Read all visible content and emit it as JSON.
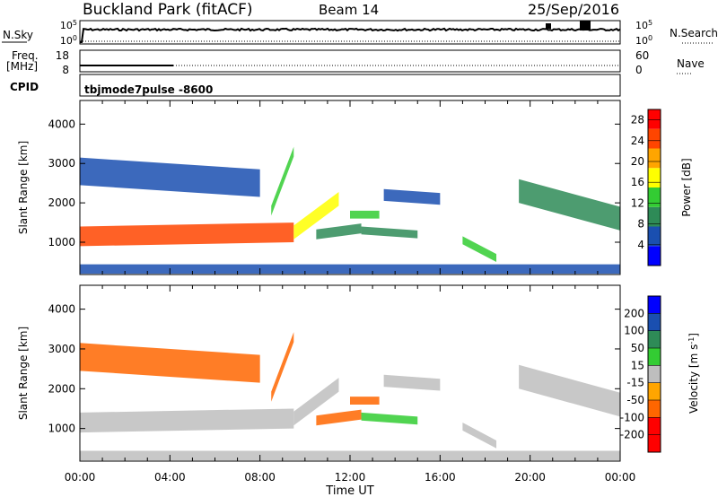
{
  "header": {
    "station": "Buckland Park (fitACF)",
    "beam": "Beam 14",
    "date": "25/Sep/2016"
  },
  "noise_panel": {
    "left_label": "N.Sky",
    "left_ticks": [
      "10^5",
      "10^0"
    ],
    "right_label": "N.Search",
    "right_ticks": [
      "10^5",
      "10^0"
    ]
  },
  "freq_panel": {
    "left_label": "Freq.",
    "left_unit": "[MHz]",
    "left_ticks": [
      "18",
      "8"
    ],
    "right_label": "Nave",
    "right_ticks": [
      "60",
      "0"
    ]
  },
  "cpid_panel": {
    "label": "CPID",
    "mode": "tbjmode7pulse  -8600"
  },
  "x_axis": {
    "label": "Time UT",
    "ticks": [
      "00:00",
      "04:00",
      "08:00",
      "12:00",
      "16:00",
      "20:00",
      "00:00"
    ]
  },
  "colors": {
    "power_scale": [
      "#0000ff",
      "#1a4fb0",
      "#2e8b57",
      "#33cc33",
      "#ffff00",
      "#ffa500",
      "#ff4500",
      "#ff0000"
    ],
    "velocity_scale": [
      "#0000ff",
      "#1a4fb0",
      "#2e8b57",
      "#33cc33",
      "#c0c0c0",
      "#ffa500",
      "#ff6600",
      "#ff0000"
    ],
    "ground_scatter": "#bebebe"
  },
  "chart_data": [
    {
      "type": "heatmap",
      "xlabel": "Time UT",
      "ylabel": "Slant Range [km]",
      "xlim": [
        0,
        24
      ],
      "ylim": [
        180,
        4600
      ],
      "y_ticks": [
        1000,
        2000,
        3000,
        4000
      ],
      "colorbar": {
        "label": "Power [dB]",
        "ticks": [
          4,
          8,
          12,
          16,
          20,
          24,
          28
        ],
        "range": [
          0,
          30
        ]
      },
      "regions": [
        {
          "x": [
            0,
            9.5
          ],
          "range_center_start": 1150,
          "range_center_end": 1250,
          "width_km": 500,
          "value": 24
        },
        {
          "x": [
            9.5,
            11.5
          ],
          "range_center_start": 1250,
          "range_center_end": 2100,
          "width_km": 350,
          "value": 16
        },
        {
          "x": [
            0,
            8
          ],
          "range_center_start": 2800,
          "range_center_end": 2500,
          "width_km": 700,
          "value": 6
        },
        {
          "x": [
            8.5,
            9.5
          ],
          "range_center_start": 1800,
          "range_center_end": 3300,
          "width_km": 250,
          "value": 14
        },
        {
          "x": [
            12,
            13.3
          ],
          "range_center_start": 1700,
          "range_center_end": 1700,
          "width_km": 200,
          "value": 14
        },
        {
          "x": [
            10.5,
            12.5
          ],
          "range_center_start": 1200,
          "range_center_end": 1350,
          "width_km": 250,
          "value": 9
        },
        {
          "x": [
            12.5,
            15
          ],
          "range_center_start": 1300,
          "range_center_end": 1200,
          "width_km": 200,
          "value": 10
        },
        {
          "x": [
            13.5,
            16
          ],
          "range_center_start": 2200,
          "range_center_end": 2100,
          "width_km": 300,
          "value": 6
        },
        {
          "x": [
            17,
            18.5
          ],
          "range_center_start": 1050,
          "range_center_end": 600,
          "width_km": 200,
          "value": 12
        },
        {
          "x": [
            19.5,
            24
          ],
          "range_center_start": 2300,
          "range_center_end": 1600,
          "width_km": 600,
          "value": 10
        },
        {
          "x": [
            0,
            24
          ],
          "range_center_start": 320,
          "range_center_end": 320,
          "width_km": 240,
          "value": 5
        }
      ]
    },
    {
      "type": "heatmap",
      "xlabel": "Time UT",
      "ylabel": "Slant Range [km]",
      "xlim": [
        0,
        24
      ],
      "ylim": [
        180,
        4600
      ],
      "y_ticks": [
        1000,
        2000,
        3000,
        4000
      ],
      "colorbar": {
        "label": "Velocity [m s^-1]",
        "ticks": [
          200,
          100,
          50,
          15,
          -15,
          -50,
          -100,
          -200
        ],
        "range": [
          -250,
          250
        ]
      },
      "regions": [
        {
          "x": [
            0,
            9.5
          ],
          "range_center_start": 1150,
          "range_center_end": 1250,
          "width_km": 500,
          "value": 0
        },
        {
          "x": [
            9.5,
            11.5
          ],
          "range_center_start": 1250,
          "range_center_end": 2100,
          "width_km": 350,
          "value": 0
        },
        {
          "x": [
            0,
            8
          ],
          "range_center_start": 2800,
          "range_center_end": 2500,
          "width_km": 700,
          "value": -60
        },
        {
          "x": [
            8.5,
            9.5
          ],
          "range_center_start": 1800,
          "range_center_end": 3300,
          "width_km": 250,
          "value": -80
        },
        {
          "x": [
            12,
            13.3
          ],
          "range_center_start": 1700,
          "range_center_end": 1700,
          "width_km": 200,
          "value": -80
        },
        {
          "x": [
            10.5,
            12.5
          ],
          "range_center_start": 1200,
          "range_center_end": 1350,
          "width_km": 250,
          "value": -70
        },
        {
          "x": [
            12.5,
            15
          ],
          "range_center_start": 1300,
          "range_center_end": 1200,
          "width_km": 200,
          "value": 30
        },
        {
          "x": [
            13.5,
            16
          ],
          "range_center_start": 2200,
          "range_center_end": 2100,
          "width_km": 300,
          "value": 0
        },
        {
          "x": [
            17,
            18.5
          ],
          "range_center_start": 1050,
          "range_center_end": 600,
          "width_km": 200,
          "value": 0
        },
        {
          "x": [
            19.5,
            24
          ],
          "range_center_start": 2300,
          "range_center_end": 1600,
          "width_km": 600,
          "value": 0
        },
        {
          "x": [
            0,
            24
          ],
          "range_center_start": 320,
          "range_center_end": 320,
          "width_km": 240,
          "value": 0
        }
      ]
    }
  ]
}
